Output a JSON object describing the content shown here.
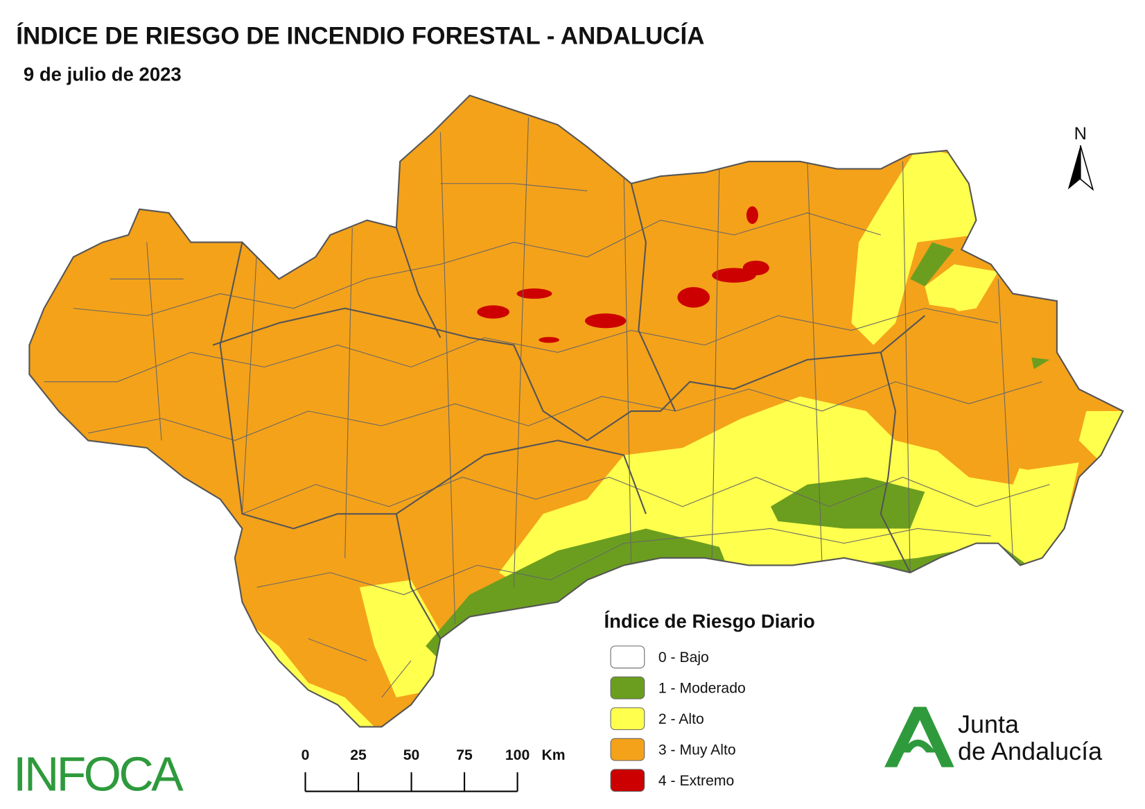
{
  "header": {
    "title": "ÍNDICE DE RIESGO DE INCENDIO FORESTAL - ANDALUCÍA",
    "subtitle": "9 de julio de 2023"
  },
  "legend": {
    "title": "Índice de Riesgo Diario",
    "items": [
      {
        "label": "0 - Bajo",
        "color": "#ffffff"
      },
      {
        "label": "1 - Moderado",
        "color": "#6b9e1f"
      },
      {
        "label": "2 - Alto",
        "color": "#ffff4d"
      },
      {
        "label": "3 - Muy Alto",
        "color": "#f4a21a"
      },
      {
        "label": "4 - Extremo",
        "color": "#cc0000"
      }
    ]
  },
  "scale_bar": {
    "ticks": [
      0,
      25,
      50,
      75,
      100
    ],
    "unit": "Km"
  },
  "north": "N",
  "logos": {
    "left": "INFOCA",
    "right_line1": "Junta",
    "right_line2": "de Andalucía"
  }
}
